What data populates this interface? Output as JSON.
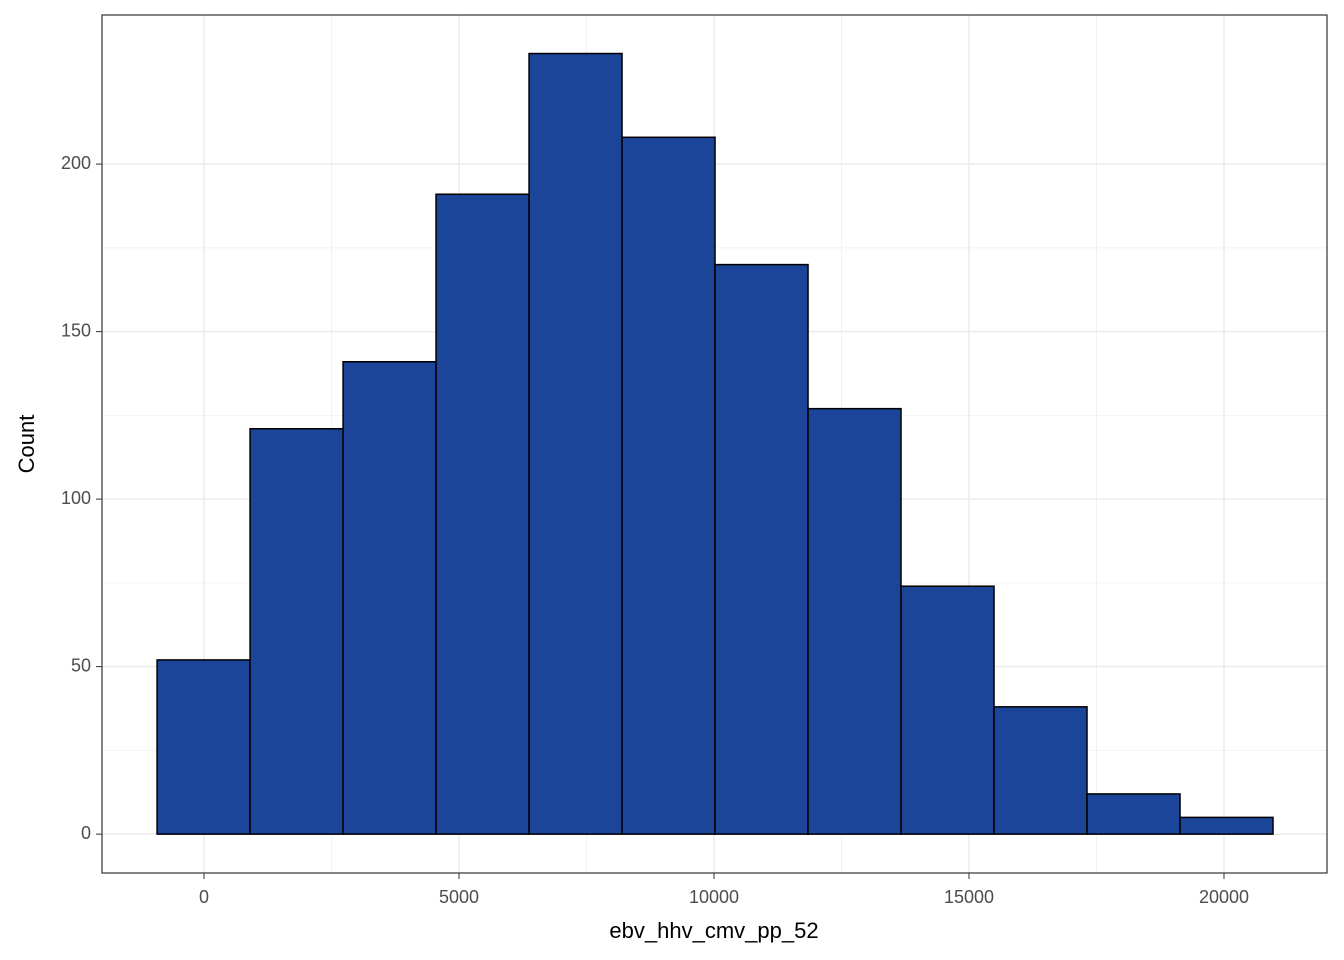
{
  "chart_data": {
    "type": "histogram",
    "x_label": "ebv_hhv_cmv_pp_52",
    "y_label": "Count",
    "bins": [
      -920,
      903,
      2727,
      4550,
      6374,
      8197,
      10020,
      11844,
      13667,
      15491,
      17314,
      19138,
      20961
    ],
    "values": [
      52,
      121,
      141,
      191,
      233,
      208,
      170,
      127,
      74,
      38,
      12,
      5
    ],
    "color": "#1a4599",
    "edge_color": "#000000",
    "xlim": [
      -2000,
      22020
    ],
    "ylim": [
      -11.6,
      244.5
    ],
    "xticks": [
      0,
      5000,
      10000,
      15000,
      20000
    ],
    "yticks": [
      0,
      50,
      100,
      150,
      200
    ],
    "grid": true,
    "minor_grid": true
  }
}
